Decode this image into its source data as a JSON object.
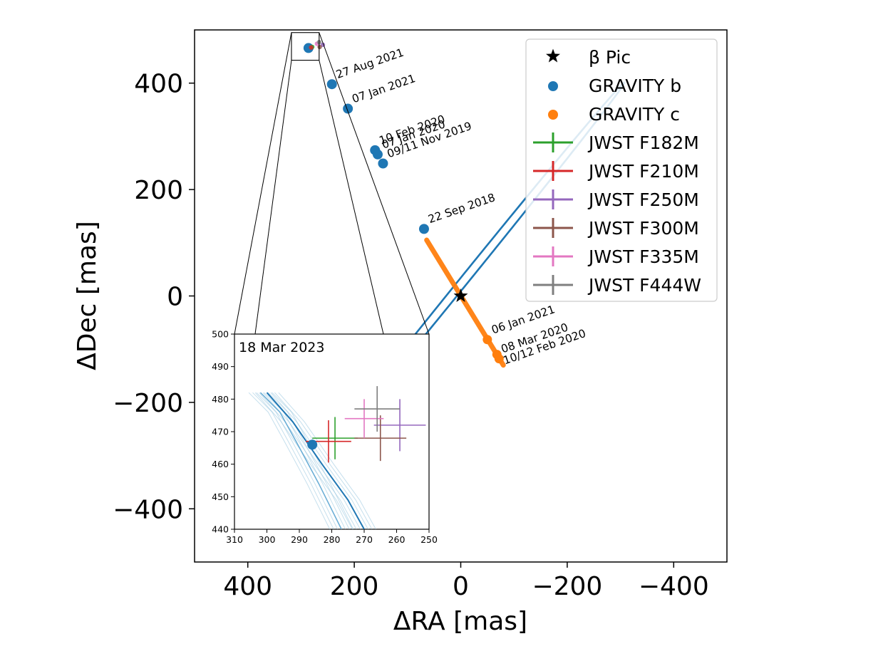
{
  "chart_data": [
    {
      "type": "scatter",
      "name": "main-orbit-plot",
      "xlabel": "ΔRA [mas]",
      "ylabel": "ΔDec [mas]",
      "xlim": [
        500,
        -500
      ],
      "ylim": [
        -500,
        500
      ],
      "xticks": [
        400,
        200,
        0,
        -200,
        -400
      ],
      "xtick_labels": [
        "400",
        "200",
        "0",
        "−200",
        "−400"
      ],
      "yticks": [
        400,
        200,
        0,
        -200,
        -400
      ],
      "ytick_labels": [
        "400",
        "200",
        "0",
        "−200",
        "−400"
      ],
      "orbit": {
        "description": "model orbit ellipse of beta Pic b",
        "color": "#1f77b4",
        "center": [
          -15,
          40
        ],
        "semi_major": 465,
        "semi_minor": 8,
        "position_angle_deg": 129
      },
      "series": [
        {
          "name": "β Pic",
          "marker": "star",
          "color": "#000000",
          "points": [
            {
              "x": 0,
              "y": 0
            }
          ]
        },
        {
          "name": "GRAVITY b",
          "marker": "circle",
          "color": "#1f77b4",
          "points": [
            {
              "x": 286,
              "y": 466,
              "label": ""
            },
            {
              "x": 242,
              "y": 398,
              "label": "27 Aug 2021"
            },
            {
              "x": 212,
              "y": 352,
              "label": "07 Jan 2021"
            },
            {
              "x": 161,
              "y": 274,
              "label": "10 Feb 2020"
            },
            {
              "x": 156,
              "y": 266,
              "label": "07 Jan 2020"
            },
            {
              "x": 146,
              "y": 249,
              "label": "09/11 Nov 2019"
            },
            {
              "x": 69,
              "y": 126,
              "label": "22 Sep 2018"
            }
          ]
        },
        {
          "name": "GRAVITY c",
          "marker": "circle",
          "color": "#ff7f0e",
          "points": [
            {
              "x": -50,
              "y": -82,
              "label": "06 Jan 2021"
            },
            {
              "x": -68,
              "y": -110,
              "label": "08 Mar 2020"
            },
            {
              "x": -72,
              "y": -118,
              "label": "10/12 Feb 2020"
            }
          ],
          "track": {
            "from": [
              64,
              105
            ],
            "to": [
              -80,
              -130
            ]
          }
        }
      ],
      "legend": {
        "position": "top-right",
        "entries": [
          {
            "label": "β Pic",
            "marker": "star",
            "color": "#000000"
          },
          {
            "label": "GRAVITY b",
            "marker": "circle",
            "color": "#1f77b4"
          },
          {
            "label": "GRAVITY c",
            "marker": "circle",
            "color": "#ff7f0e"
          },
          {
            "label": "JWST F182M",
            "marker": "errorbar",
            "color": "#2ca02c"
          },
          {
            "label": "JWST F210M",
            "marker": "errorbar",
            "color": "#d62728"
          },
          {
            "label": "JWST F250M",
            "marker": "errorbar",
            "color": "#9467bd"
          },
          {
            "label": "JWST F300M",
            "marker": "errorbar",
            "color": "#8c564b"
          },
          {
            "label": "JWST F335M",
            "marker": "errorbar",
            "color": "#e377c2"
          },
          {
            "label": "JWST F444W",
            "marker": "errorbar",
            "color": "#7f7f7f"
          }
        ]
      },
      "zoom_box": {
        "xlim": [
          318,
          266
        ],
        "ylim": [
          443,
          495
        ]
      }
    },
    {
      "type": "scatter",
      "name": "inset-zoom",
      "title": "18 Mar 2023",
      "xlim": [
        310,
        250
      ],
      "ylim": [
        440,
        500
      ],
      "xticks": [
        310,
        300,
        290,
        280,
        270,
        260,
        250
      ],
      "xtick_labels": [
        "310",
        "300",
        "290",
        "280",
        "270",
        "260",
        "250"
      ],
      "yticks": [
        440,
        450,
        460,
        470,
        480,
        490,
        500
      ],
      "ytick_labels": [
        "440",
        "450",
        "460",
        "470",
        "480",
        "490",
        "500"
      ],
      "gravity_b_point": {
        "x": 286,
        "y": 466
      },
      "orbit_arms": {
        "color": "#1f77b4",
        "inner_arm": [
          [
            300,
            482
          ],
          [
            292,
            473
          ],
          [
            283,
            460
          ],
          [
            275,
            449
          ],
          [
            270,
            440
          ]
        ],
        "outer_arm": [
          [
            302,
            482
          ],
          [
            296,
            476
          ],
          [
            291,
            467
          ],
          [
            284,
            454
          ],
          [
            277,
            440
          ]
        ]
      },
      "jwst_measurements": [
        {
          "filter": "JWST F182M",
          "color": "#2ca02c",
          "x": 279,
          "y": 468,
          "xerr": 7,
          "yerr": 6.5
        },
        {
          "filter": "JWST F210M",
          "color": "#d62728",
          "x": 281,
          "y": 467,
          "xerr": 7,
          "yerr": 6.5
        },
        {
          "filter": "JWST F250M",
          "color": "#9467bd",
          "x": 259,
          "y": 472,
          "xerr": 8,
          "yerr": 8
        },
        {
          "filter": "JWST F300M",
          "color": "#8c564b",
          "x": 265,
          "y": 468,
          "xerr": 8,
          "yerr": 7
        },
        {
          "filter": "JWST F335M",
          "color": "#e377c2",
          "x": 270,
          "y": 474,
          "xerr": 6,
          "yerr": 6
        },
        {
          "filter": "JWST F444W",
          "color": "#7f7f7f",
          "x": 266,
          "y": 477,
          "xerr": 7,
          "yerr": 7
        }
      ]
    }
  ]
}
